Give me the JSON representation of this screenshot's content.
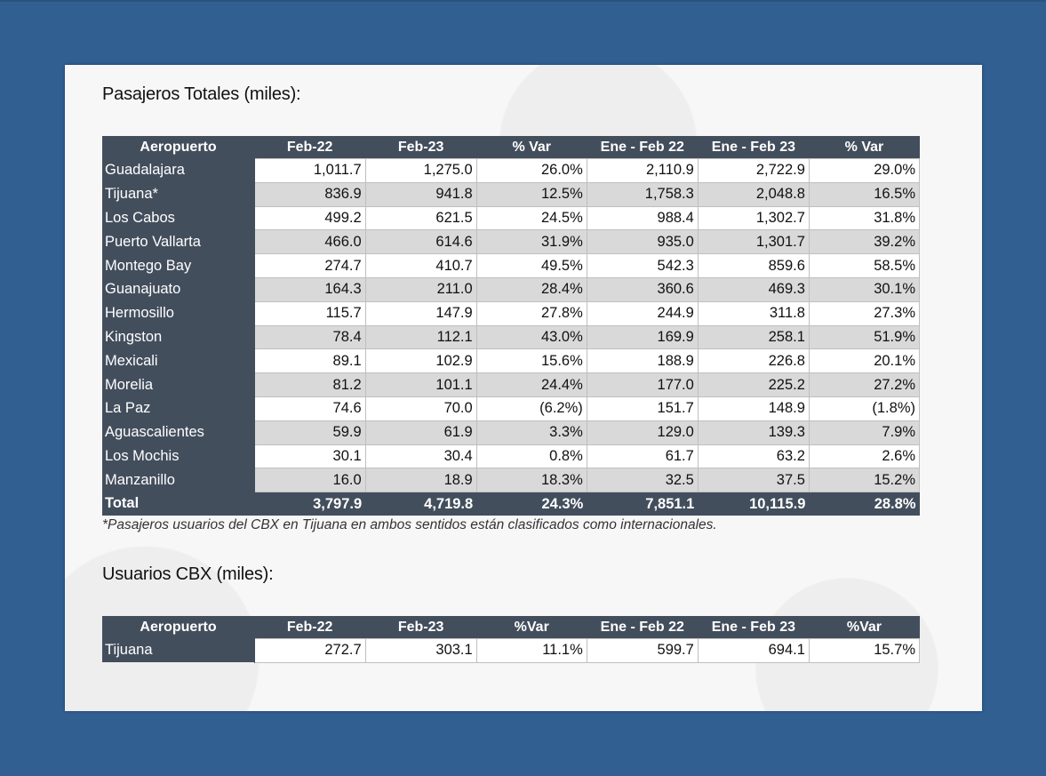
{
  "section1": {
    "title": "Pasajeros Totales (miles):",
    "headers": [
      "Aeropuerto",
      "Feb-22",
      "Feb-23",
      "% Var",
      "Ene - Feb 22",
      "Ene - Feb 23",
      "% Var"
    ],
    "rows": [
      [
        "Guadalajara",
        "1,011.7",
        "1,275.0",
        "26.0%",
        "2,110.9",
        "2,722.9",
        "29.0%"
      ],
      [
        "Tijuana*",
        "836.9",
        "941.8",
        "12.5%",
        "1,758.3",
        "2,048.8",
        "16.5%"
      ],
      [
        "Los Cabos",
        "499.2",
        "621.5",
        "24.5%",
        "988.4",
        "1,302.7",
        "31.8%"
      ],
      [
        "Puerto Vallarta",
        "466.0",
        "614.6",
        "31.9%",
        "935.0",
        "1,301.7",
        "39.2%"
      ],
      [
        "Montego Bay",
        "274.7",
        "410.7",
        "49.5%",
        "542.3",
        "859.6",
        "58.5%"
      ],
      [
        "Guanajuato",
        "164.3",
        "211.0",
        "28.4%",
        "360.6",
        "469.3",
        "30.1%"
      ],
      [
        "Hermosillo",
        "115.7",
        "147.9",
        "27.8%",
        "244.9",
        "311.8",
        "27.3%"
      ],
      [
        "Kingston",
        "78.4",
        "112.1",
        "43.0%",
        "169.9",
        "258.1",
        "51.9%"
      ],
      [
        "Mexicali",
        "89.1",
        "102.9",
        "15.6%",
        "188.9",
        "226.8",
        "20.1%"
      ],
      [
        "Morelia",
        "81.2",
        "101.1",
        "24.4%",
        "177.0",
        "225.2",
        "27.2%"
      ],
      [
        "La Paz",
        "74.6",
        "70.0",
        "(6.2%)",
        "151.7",
        "148.9",
        "(1.8%)"
      ],
      [
        "Aguascalientes",
        "59.9",
        "61.9",
        "3.3%",
        "129.0",
        "139.3",
        "7.9%"
      ],
      [
        "Los Mochis",
        "30.1",
        "30.4",
        "0.8%",
        "61.7",
        "63.2",
        "2.6%"
      ],
      [
        "Manzanillo",
        "16.0",
        "18.9",
        "18.3%",
        "32.5",
        "37.5",
        "15.2%"
      ]
    ],
    "total": [
      "Total",
      "3,797.9",
      "4,719.8",
      "24.3%",
      "7,851.1",
      "10,115.9",
      "28.8%"
    ],
    "footnote": "*Pasajeros usuarios del CBX en Tijuana en ambos sentidos están clasificados como internacionales."
  },
  "section2": {
    "title": "Usuarios CBX (miles):",
    "headers": [
      "Aeropuerto",
      "Feb-22",
      "Feb-23",
      "%Var",
      "Ene - Feb 22",
      "Ene - Feb 23",
      "%Var"
    ],
    "rows": [
      [
        "Tijuana",
        "272.7",
        "303.1",
        "11.1%",
        "599.7",
        "694.1",
        "15.7%"
      ]
    ]
  },
  "colors": {
    "frame": "#315f92",
    "header": "#434e5d",
    "row_alt": "#d9d9d9",
    "row": "#ffffff"
  }
}
